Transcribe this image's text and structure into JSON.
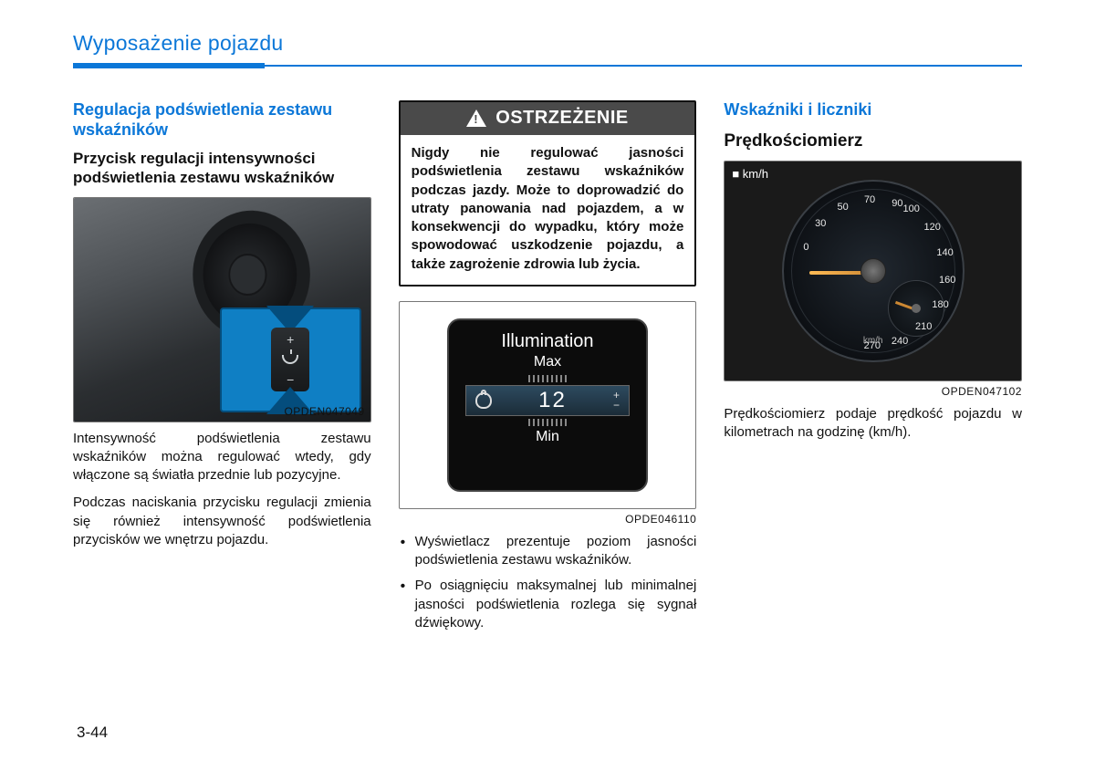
{
  "chapter_title": "Wyposażenie pojazdu",
  "page_number": "3-44",
  "colors": {
    "brand_blue": "#0b77d8",
    "warning_header_bg": "#4a4a4a",
    "text": "#111111"
  },
  "col1": {
    "heading_blue": "Regulacja podświetlenia zestawu wskaźników",
    "heading_bold": "Przycisk regulacji intensywności podświetlenia zestawu wskaźników",
    "figure_code": "OPDEN047049",
    "para1": "Intensywność podświetlenia zestawu wskaźników można regulować wtedy, gdy włączone są światła przednie lub pozycyjne.",
    "para2": "Podczas naciskania przycisku regulacji zmienia się również intensywność podświetlenia przycisków we wnętrzu pojazdu."
  },
  "col2": {
    "warning_title": "OSTRZEŻENIE",
    "warning_body": "Nigdy nie regulować jasności podświetlenia zestawu wskaźników podczas jazdy. Może to doprowadzić do utraty panowania nad pojazdem, a w konsekwencji do wypadku, który może spowodować uszkodzenie pojazdu, a także zagrożenie zdrowia lub życia.",
    "illum": {
      "title": "Illumination",
      "max": "Max",
      "min": "Min",
      "value": "12"
    },
    "figure_code": "OPDE046110",
    "bullet1": "Wyświetlacz prezentuje poziom jasności podświetlenia zestawu wskaźników.",
    "bullet2": "Po osiągnięciu maksymalnej lub minimalnej jasności podświetlenia rozlega się sygnał dźwiękowy."
  },
  "col3": {
    "heading_blue": "Wskaźniki i liczniki",
    "heading_bold": "Prędkościomierz",
    "kmh_tag": "■ km/h",
    "figure_code": "OPDEN047102",
    "para": "Prędkościomierz podaje prędkość pojazdu w kilometrach na godzinę (km/h).",
    "gauge": {
      "ticks": [
        {
          "label": "0",
          "angle": 200
        },
        {
          "label": "30",
          "angle": 222
        },
        {
          "label": "50",
          "angle": 244
        },
        {
          "label": "70",
          "angle": 266
        },
        {
          "label": "90",
          "angle": 288
        },
        {
          "label": "100",
          "angle": 300
        },
        {
          "label": "120",
          "angle": 322
        },
        {
          "label": "140",
          "angle": 344
        },
        {
          "label": "160",
          "angle": 6
        },
        {
          "label": "180",
          "angle": 26
        },
        {
          "label": "210",
          "angle": 48
        },
        {
          "label": "240",
          "angle": 70
        },
        {
          "label": "270",
          "angle": 92
        }
      ],
      "unit": "km/h"
    }
  }
}
